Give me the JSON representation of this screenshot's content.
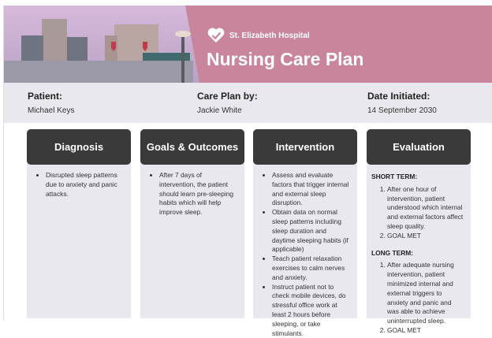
{
  "header": {
    "hospital": "St. Elizabeth Hospital",
    "title": "Nursing Care Plan",
    "accent": "#c9859c"
  },
  "info": [
    {
      "label": "Patient:",
      "value": "Michael Keys"
    },
    {
      "label": "Care Plan by:",
      "value": "Jackie White"
    },
    {
      "label": "Date Initiated:",
      "value": "14 September 2030"
    }
  ],
  "columns": {
    "diagnosis": {
      "title": "Diagnosis",
      "items": [
        "Disrupted sleep patterns due to anxiety and panic attacks."
      ]
    },
    "goals": {
      "title": "Goals & Outcomes",
      "items": [
        "After 7 days of intervention, the patient should learn pre-sleeping habits which will help improve sleep."
      ]
    },
    "intervention": {
      "title": "Intervention",
      "items": [
        "Assess and evaluate factors that trigger internal and external sleep disruption.",
        "Obtain data on normal sleep patterns including sleep duration and daytime sleeping habits (if applicable)",
        "Teach patient relaxation exercises to calm nerves and anxiety.",
        "Instruct patient not to check mobile devices, do stressful office work at least 2 hours before sleeping, or take stimulants."
      ]
    },
    "evaluation": {
      "title": "Evaluation",
      "short_term": {
        "label": "SHORT TERM:",
        "items": [
          "After one hour of intervention, patient understood which internal and external factors affect sleep quality.",
          "GOAL MET"
        ]
      },
      "long_term": {
        "label": "LONG TERM:",
        "items": [
          "After adequate nursing intervention, patient minimized internal and external triggers to anxiety and panic and was able to achieve uninterrupted sleep.",
          "GOAL MET"
        ]
      }
    }
  }
}
